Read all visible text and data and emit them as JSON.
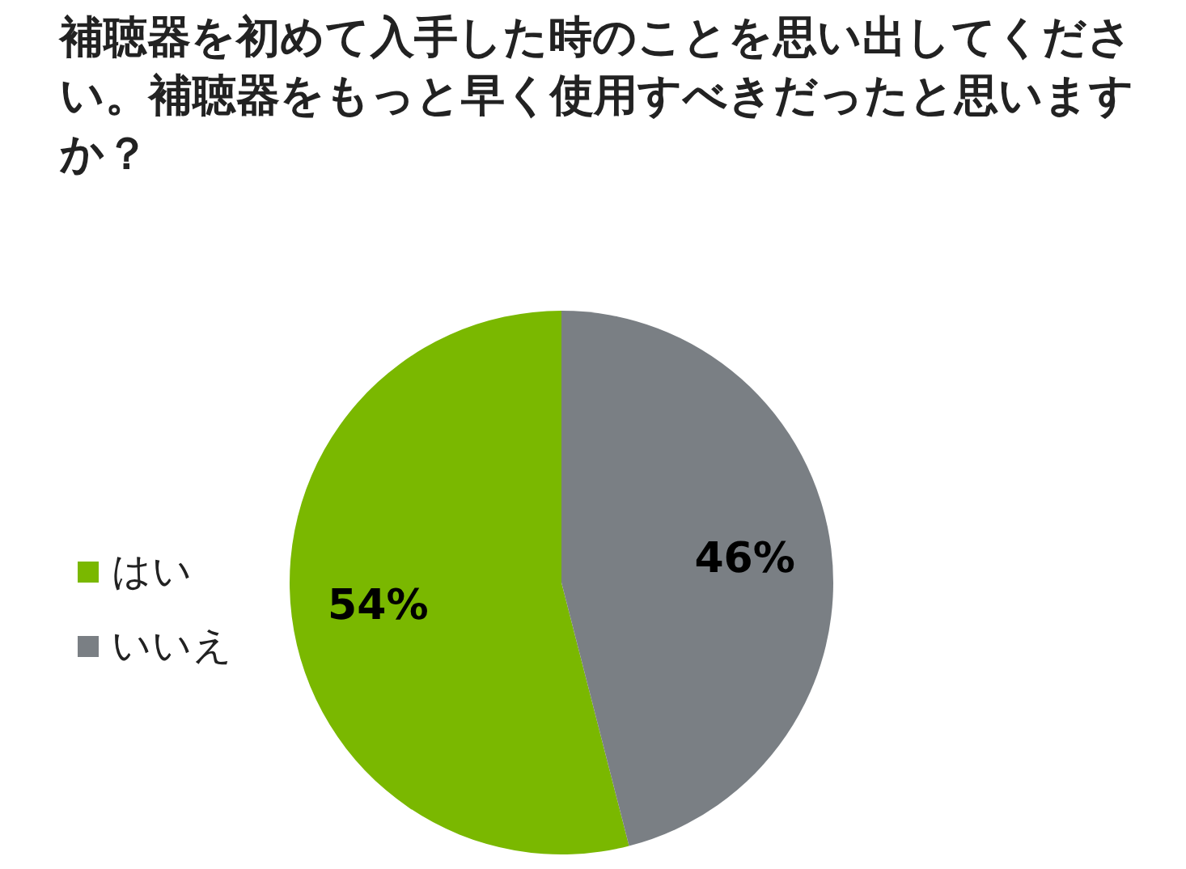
{
  "chart_data": {
    "type": "pie",
    "title": "補聴器を初めて入手した時のことを思い出してください。補聴器をもっと早く使用すべきだったと思いますか？",
    "categories": [
      "はい",
      "いいえ"
    ],
    "values": [
      54,
      46
    ],
    "value_labels": [
      "54%",
      "46%"
    ],
    "colors": [
      "#7ab800",
      "#7a7f84"
    ],
    "legend": "left"
  }
}
